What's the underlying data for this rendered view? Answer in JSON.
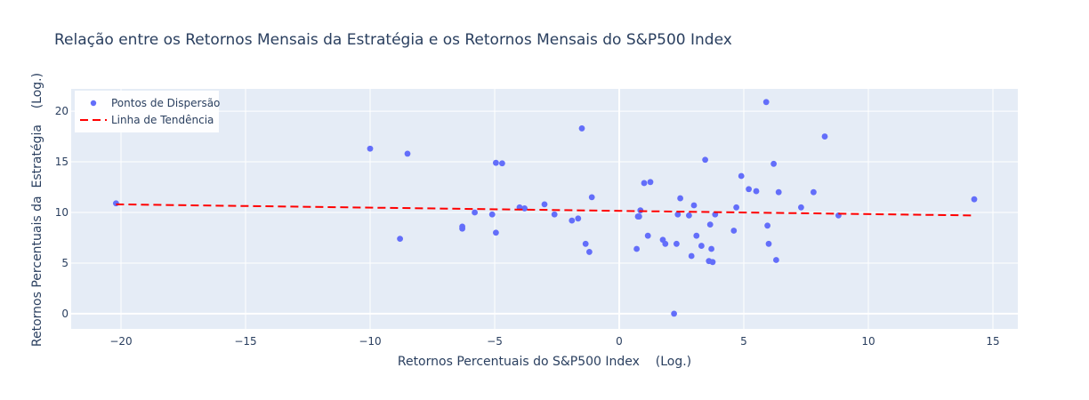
{
  "chart_data": {
    "type": "scatter",
    "title": "Relação entre os Retornos Mensais da Estratégia e os Retornos Mensais do S&P500 Index",
    "xlabel": "Retornos Percentuais do S&P500 Index    (Log.)",
    "ylabel": "Retornos Percentuais da  Estratégia    (Log.)",
    "xlim": [
      -22,
      16
    ],
    "ylim": [
      -1.5,
      22.2
    ],
    "xticks": [
      -20,
      -15,
      -10,
      -5,
      0,
      5,
      10,
      15
    ],
    "yticks": [
      0,
      5,
      10,
      15,
      20
    ],
    "xtick_labels": [
      "−20",
      "−15",
      "−10",
      "−5",
      "0",
      "5",
      "10",
      "15"
    ],
    "ytick_labels": [
      "0",
      "5",
      "10",
      "15",
      "20"
    ],
    "grid": true,
    "legend_position": "top-left",
    "colors": {
      "scatter": "#636efa",
      "trend": "#ff0000",
      "plot_bg": "#e5ecf6",
      "grid": "#ffffff"
    },
    "series": [
      {
        "name": "Pontos de Dispersão",
        "type": "scatter",
        "x": [
          -20.2,
          -10.0,
          -8.8,
          -8.5,
          -6.3,
          -6.3,
          -5.8,
          -5.1,
          -4.95,
          -4.95,
          -4.7,
          -4.0,
          -3.8,
          -3.0,
          -2.6,
          -1.9,
          -1.65,
          -1.5,
          -1.35,
          -1.2,
          -1.1,
          0.7,
          0.75,
          0.8,
          0.85,
          1.0,
          1.15,
          1.25,
          1.75,
          1.85,
          2.2,
          2.3,
          2.35,
          2.45,
          2.8,
          2.9,
          3.0,
          3.1,
          3.3,
          3.45,
          3.6,
          3.65,
          3.7,
          3.75,
          3.85,
          4.6,
          4.7,
          4.9,
          5.2,
          5.5,
          5.9,
          5.95,
          6.0,
          6.2,
          6.3,
          6.4,
          7.3,
          7.8,
          8.25,
          8.8,
          14.25
        ],
        "y": [
          10.9,
          16.3,
          7.4,
          15.8,
          8.4,
          8.6,
          10.0,
          9.8,
          8.0,
          14.9,
          14.85,
          10.5,
          10.4,
          10.8,
          9.8,
          9.2,
          9.4,
          18.3,
          6.9,
          6.1,
          11.5,
          6.4,
          9.6,
          9.6,
          10.2,
          12.9,
          7.7,
          13.0,
          7.3,
          6.9,
          0.0,
          6.9,
          9.8,
          11.4,
          9.7,
          5.7,
          10.7,
          7.7,
          6.7,
          15.2,
          5.2,
          8.8,
          6.4,
          5.1,
          9.8,
          8.2,
          10.5,
          13.6,
          12.3,
          12.1,
          20.9,
          8.7,
          6.9,
          14.8,
          5.3,
          12.0,
          10.5,
          12.0,
          17.5,
          9.7,
          11.3
        ]
      },
      {
        "name": "Linha de Tendência",
        "type": "line",
        "x": [
          -20.2,
          14.25
        ],
        "y": [
          10.8,
          9.7
        ]
      }
    ]
  }
}
